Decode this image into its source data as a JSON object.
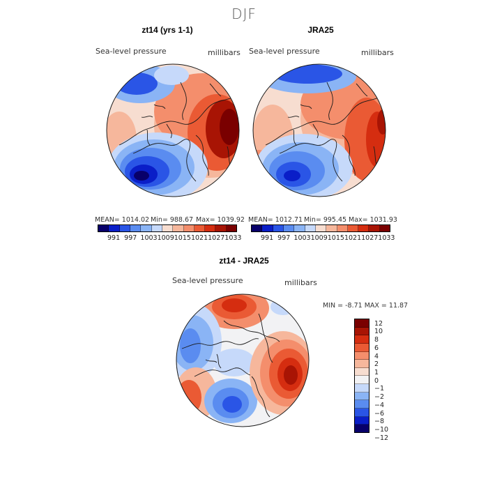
{
  "figure": {
    "title": "DJF"
  },
  "palette": {
    "sequential": [
      "#08006a",
      "#0a1ec8",
      "#2a55e6",
      "#5a8cf0",
      "#8ab4f5",
      "#c6d9fa",
      "#f7ddd0",
      "#f6b79c",
      "#f48e6c",
      "#ea5a34",
      "#d52d10",
      "#a81404",
      "#7a0000"
    ],
    "diff": [
      "#7a0000",
      "#a81404",
      "#d52d10",
      "#ea5a34",
      "#f48e6c",
      "#f6b79c",
      "#f7ddd0",
      "#f2f2f4",
      "#c6d9fa",
      "#8ab4f5",
      "#5a8cf0",
      "#2a55e6",
      "#0a1ec8",
      "#08006a"
    ],
    "coast": "#1a1a1a"
  },
  "panels": [
    {
      "title": "zt14 (yrs 1-1)",
      "field_label": "Sea-level pressure",
      "units": "millibars",
      "mean": "MEAN= 1014.02",
      "min": "Min= 988.67",
      "max": "Max= 1039.92",
      "colorbar_ticks": [
        "991",
        "997",
        "1003",
        "1009",
        "1015",
        "1021",
        "1027",
        "1033"
      ]
    },
    {
      "title": "JRA25",
      "field_label": "Sea-level pressure",
      "units": "millibars",
      "mean": "MEAN= 1012.71",
      "min": "Min= 995.45",
      "max": "Max= 1031.93",
      "colorbar_ticks": [
        "991",
        "997",
        "1003",
        "1009",
        "1015",
        "1021",
        "1027",
        "1033"
      ]
    },
    {
      "title": "zt14 - JRA25",
      "field_label": "Sea-level pressure",
      "units": "millibars",
      "minmax": "MIN =  -8.71 MAX =  11.87",
      "colorbar_ticks": [
        "12",
        "10",
        "8",
        "6",
        "4",
        "2",
        "1",
        "0",
        "−1",
        "−2",
        "−4",
        "−6",
        "−8",
        "−10",
        "−12"
      ]
    }
  ]
}
